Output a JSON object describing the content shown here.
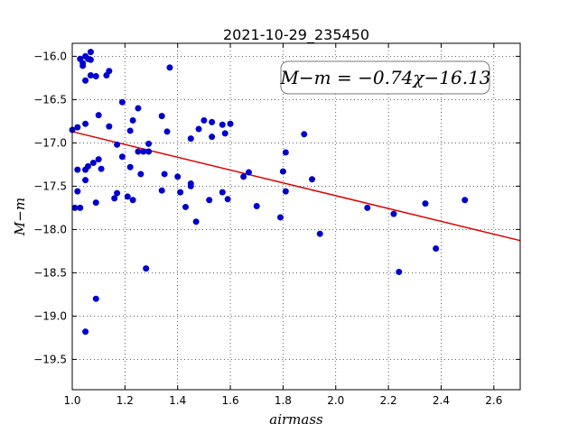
{
  "chart_data": {
    "type": "scatter",
    "title": "2021-10-29_235450",
    "xlabel": "airmass",
    "ylabel": "M−m",
    "xlim": [
      1.0,
      2.7
    ],
    "ylim": [
      -19.85,
      -15.85
    ],
    "y_inverted": true,
    "grid": true,
    "x_ticks": [
      1.0,
      1.2,
      1.4,
      1.6,
      1.8,
      2.0,
      2.2,
      2.4,
      2.6
    ],
    "x_tick_labels": [
      "1.0",
      "1.2",
      "1.4",
      "1.6",
      "1.8",
      "2.0",
      "2.2",
      "2.4",
      "2.6"
    ],
    "y_ticks": [
      -16.0,
      -16.5,
      -17.0,
      -17.5,
      -18.0,
      -18.5,
      -19.0,
      -19.5
    ],
    "y_tick_labels": [
      "−16.0",
      "−16.5",
      "−17.0",
      "−17.5",
      "−18.0",
      "−18.5",
      "−19.0",
      "−19.5"
    ],
    "annotation": "M−m = −0.74χ−16.13",
    "point_color": "#0000cc",
    "line_color": "#dd0000",
    "fit": {
      "slope": -0.74,
      "intercept": -16.13
    },
    "points": [
      [
        1.0,
        -16.85
      ],
      [
        1.01,
        -17.75
      ],
      [
        1.02,
        -17.56
      ],
      [
        1.02,
        -17.31
      ],
      [
        1.02,
        -16.82
      ],
      [
        1.03,
        -16.03
      ],
      [
        1.03,
        -17.75
      ],
      [
        1.04,
        -16.08
      ],
      [
        1.04,
        -16.11
      ],
      [
        1.05,
        -16.28
      ],
      [
        1.05,
        -17.31
      ],
      [
        1.05,
        -17.43
      ],
      [
        1.05,
        -19.18
      ],
      [
        1.05,
        -16.78
      ],
      [
        1.05,
        -16.0
      ],
      [
        1.06,
        -17.27
      ],
      [
        1.06,
        -16.03
      ],
      [
        1.07,
        -16.04
      ],
      [
        1.07,
        -15.95
      ],
      [
        1.07,
        -16.22
      ],
      [
        1.08,
        -17.23
      ],
      [
        1.09,
        -18.8
      ],
      [
        1.09,
        -16.23
      ],
      [
        1.09,
        -17.69
      ],
      [
        1.1,
        -17.19
      ],
      [
        1.1,
        -16.68
      ],
      [
        1.11,
        -17.3
      ],
      [
        1.13,
        -16.22
      ],
      [
        1.14,
        -16.17
      ],
      [
        1.14,
        -16.81
      ],
      [
        1.16,
        -17.64
      ],
      [
        1.17,
        -17.58
      ],
      [
        1.17,
        -17.02
      ],
      [
        1.19,
        -17.16
      ],
      [
        1.19,
        -16.53
      ],
      [
        1.21,
        -17.62
      ],
      [
        1.22,
        -16.86
      ],
      [
        1.22,
        -17.28
      ],
      [
        1.23,
        -16.74
      ],
      [
        1.23,
        -17.66
      ],
      [
        1.25,
        -16.6
      ],
      [
        1.25,
        -17.1
      ],
      [
        1.26,
        -17.36
      ],
      [
        1.27,
        -17.1
      ],
      [
        1.28,
        -18.45
      ],
      [
        1.29,
        -17.1
      ],
      [
        1.29,
        -17.01
      ],
      [
        1.34,
        -16.69
      ],
      [
        1.34,
        -17.55
      ],
      [
        1.35,
        -17.36
      ],
      [
        1.36,
        -16.87
      ],
      [
        1.37,
        -16.13
      ],
      [
        1.4,
        -17.39
      ],
      [
        1.41,
        -17.57
      ],
      [
        1.43,
        -17.74
      ],
      [
        1.45,
        -17.5
      ],
      [
        1.45,
        -16.95
      ],
      [
        1.45,
        -17.47
      ],
      [
        1.47,
        -17.91
      ],
      [
        1.48,
        -16.84
      ],
      [
        1.5,
        -16.74
      ],
      [
        1.52,
        -17.66
      ],
      [
        1.53,
        -16.76
      ],
      [
        1.53,
        -16.93
      ],
      [
        1.57,
        -16.79
      ],
      [
        1.57,
        -17.57
      ],
      [
        1.58,
        -16.89
      ],
      [
        1.59,
        -17.65
      ],
      [
        1.6,
        -16.78
      ],
      [
        1.65,
        -17.39
      ],
      [
        1.67,
        -17.34
      ],
      [
        1.7,
        -17.73
      ],
      [
        1.79,
        -17.86
      ],
      [
        1.8,
        -17.33
      ],
      [
        1.81,
        -17.11
      ],
      [
        1.81,
        -17.56
      ],
      [
        1.88,
        -16.9
      ],
      [
        1.91,
        -17.42
      ],
      [
        1.94,
        -18.05
      ],
      [
        2.12,
        -17.75
      ],
      [
        2.22,
        -17.82
      ],
      [
        2.24,
        -18.49
      ],
      [
        2.34,
        -17.7
      ],
      [
        2.38,
        -18.22
      ],
      [
        2.49,
        -17.66
      ]
    ]
  }
}
